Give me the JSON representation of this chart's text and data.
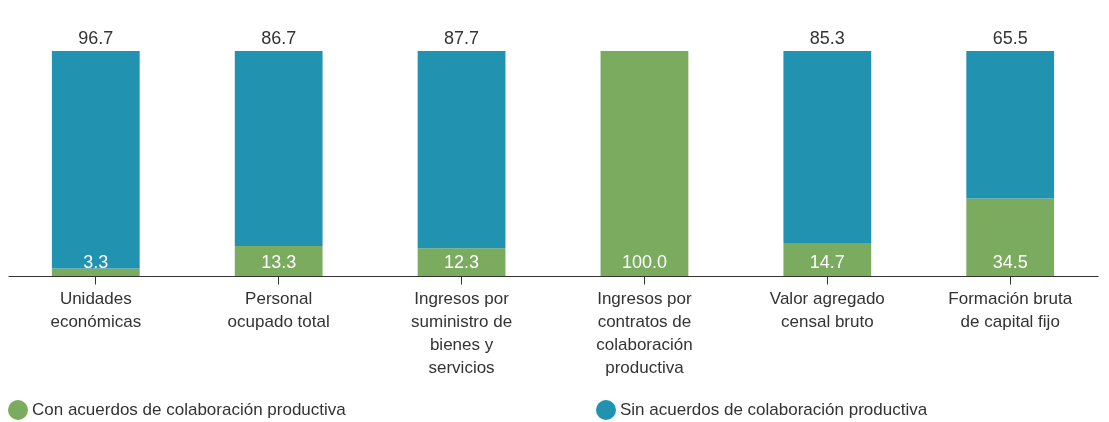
{
  "chart_data": {
    "type": "bar",
    "stacked": true,
    "legend": "bottom",
    "grid": false,
    "tick_labels": "x",
    "ylim": [
      0,
      100
    ],
    "categories": [
      "Unidades económicas",
      "Personal ocupado total",
      "Ingresos por suministro de bienes y servicios",
      "Ingresos por contratos de colaboración productiva",
      "Valor agregado censal bruto",
      "Formación bruta de capital fijo"
    ],
    "series": [
      {
        "name": "Con acuerdos de colaboración productiva",
        "color": "#7aab5e",
        "values": [
          3.3,
          13.3,
          12.3,
          100.0,
          14.7,
          34.5
        ],
        "value_labels": [
          "3.3",
          "13.3",
          "12.3",
          "100.0",
          "14.7",
          "34.5"
        ]
      },
      {
        "name": "Sin acuerdos de colaboración productiva",
        "color": "#2192b0",
        "values": [
          96.7,
          86.7,
          87.7,
          null,
          85.3,
          65.5
        ],
        "value_labels": [
          "96.7",
          "86.7",
          "87.7",
          null,
          "85.3",
          "65.5"
        ]
      }
    ]
  }
}
